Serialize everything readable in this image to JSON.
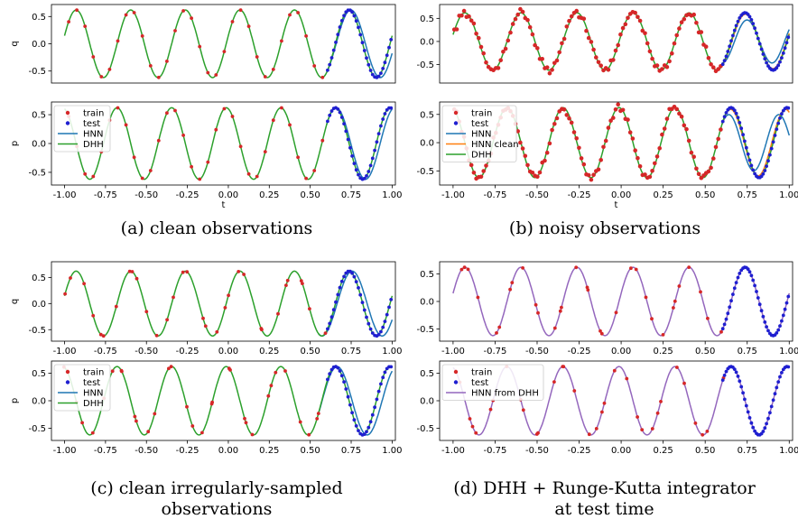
{
  "figure": {
    "captions": [
      "(a) clean observations",
      "(b) noisy observations",
      "(c) clean irregularly-sampled observations",
      "(d) DHH + Runge-Kutta integrator at test time"
    ],
    "caption_lines": [
      [
        "(a) clean observations"
      ],
      [
        "(b) noisy observations"
      ],
      [
        "(c) clean irregularly-sampled",
        "observations"
      ],
      [
        "(d) DHH + Runge-Kutta integrator",
        "at test time"
      ]
    ]
  },
  "colors": {
    "train": "#d62728",
    "test": "#1f1fd0",
    "hnn": "#1f77b4",
    "hnn_clean": "#ff7f0e",
    "dhh": "#2ca02c",
    "hnn_from_dhh": "#9467bd",
    "test_regular": "#1f3f7a"
  },
  "chart_data": [
    {
      "panel": "a-top",
      "type": "line",
      "ylabel": "q",
      "xlabel": "",
      "xlim": [
        -1.08,
        1.02
      ],
      "ylim": [
        -0.72,
        0.72
      ],
      "yticks": [
        "-0.5",
        "0.0",
        "0.5"
      ],
      "ytick_values": [
        -0.5,
        0.0,
        0.5
      ],
      "xticks": [],
      "xtick_values": [],
      "signal": {
        "amplitude": 0.62,
        "omega": 18.85,
        "phase": 0.24
      },
      "series": [
        {
          "kind": "points",
          "role": "train",
          "range": [
            -1.0,
            0.6
          ],
          "n": 32,
          "noise": 0
        },
        {
          "kind": "points",
          "role": "test",
          "range": [
            0.6,
            1.0
          ],
          "n": 32,
          "noise": 0
        },
        {
          "kind": "line",
          "role": "hnn",
          "range": [
            0.6,
            1.0
          ],
          "ampScale": 1.0,
          "omegaScale": 0.93
        },
        {
          "kind": "line",
          "role": "dhh",
          "range": [
            -1.0,
            1.0
          ],
          "ampScale": 1.0,
          "omegaScale": 1.0
        }
      ],
      "legend": []
    },
    {
      "panel": "a-bottom",
      "type": "line",
      "ylabel": "p",
      "xlabel": "t",
      "xlim": [
        -1.08,
        1.02
      ],
      "ylim": [
        -0.72,
        0.72
      ],
      "yticks": [
        "-0.5",
        "0.0",
        "0.5"
      ],
      "ytick_values": [
        -0.5,
        0.0,
        0.5
      ],
      "xticks": [
        "-1.00",
        "-0.75",
        "-0.50",
        "-0.25",
        "0.00",
        "0.25",
        "0.50",
        "0.75",
        "1.00"
      ],
      "xtick_values": [
        -1.0,
        -0.75,
        -0.5,
        -0.25,
        0.0,
        0.25,
        0.5,
        0.75,
        1.0
      ],
      "signal": {
        "amplitude": 0.62,
        "omega": 18.85,
        "phase": 1.81
      },
      "series": [
        {
          "kind": "points",
          "role": "train",
          "range": [
            -1.0,
            0.6
          ],
          "n": 32,
          "noise": 0
        },
        {
          "kind": "points",
          "role": "test",
          "range": [
            0.6,
            1.0
          ],
          "n": 32,
          "noise": 0
        },
        {
          "kind": "line",
          "role": "hnn",
          "range": [
            0.6,
            1.0
          ],
          "ampScale": 1.0,
          "omegaScale": 0.93
        },
        {
          "kind": "line",
          "role": "dhh",
          "range": [
            -1.0,
            1.0
          ],
          "ampScale": 1.0,
          "omegaScale": 1.0
        }
      ],
      "legend": [
        "train",
        "test",
        "HNN",
        "DHH"
      ]
    },
    {
      "panel": "b-top",
      "type": "line",
      "ylabel": "",
      "xlabel": "",
      "xlim": [
        -1.08,
        1.02
      ],
      "ylim": [
        -0.9,
        0.8
      ],
      "yticks": [
        "-0.5",
        "0.0",
        "0.5"
      ],
      "ytick_values": [
        -0.5,
        0.0,
        0.5
      ],
      "xticks": [],
      "xtick_values": [],
      "signal": {
        "amplitude": 0.62,
        "omega": 18.85,
        "phase": 0.24
      },
      "series": [
        {
          "kind": "points",
          "role": "train",
          "range": [
            -1.0,
            0.6
          ],
          "n": 110,
          "noise": 0.09
        },
        {
          "kind": "points",
          "role": "test",
          "range": [
            0.6,
            1.0
          ],
          "n": 40,
          "noise": 0
        },
        {
          "kind": "line",
          "role": "hnn",
          "range": [
            0.6,
            1.0
          ],
          "ampScale": 0.75,
          "omegaScale": 1.12
        },
        {
          "kind": "line",
          "role": "hnn_clean",
          "range": [
            0.6,
            1.0
          ],
          "ampScale": 0.95,
          "omegaScale": 1.02
        },
        {
          "kind": "line",
          "role": "dhh",
          "range": [
            -1.0,
            1.0
          ],
          "ampScale": 1.0,
          "omegaScale": 1.0
        }
      ],
      "legend": []
    },
    {
      "panel": "b-bottom",
      "type": "line",
      "ylabel": "",
      "xlabel": "t",
      "xlim": [
        -1.08,
        1.02
      ],
      "ylim": [
        -0.75,
        0.72
      ],
      "yticks": [
        "-0.5",
        "0.0",
        "0.5"
      ],
      "ytick_values": [
        -0.5,
        0.0,
        0.5
      ],
      "xticks": [
        "-1.00",
        "-0.75",
        "-0.50",
        "-0.25",
        "0.00",
        "0.25",
        "0.50",
        "0.75",
        "1.00"
      ],
      "xtick_values": [
        -1.0,
        -0.75,
        -0.5,
        -0.25,
        0.0,
        0.25,
        0.5,
        0.75,
        1.0
      ],
      "signal": {
        "amplitude": 0.62,
        "omega": 18.85,
        "phase": 1.81
      },
      "series": [
        {
          "kind": "points",
          "role": "train",
          "range": [
            -1.0,
            0.6
          ],
          "n": 110,
          "noise": 0.08
        },
        {
          "kind": "points",
          "role": "test",
          "range": [
            0.6,
            1.0
          ],
          "n": 40,
          "noise": 0
        },
        {
          "kind": "line",
          "role": "hnn",
          "range": [
            0.6,
            1.0
          ],
          "ampScale": 0.8,
          "omegaScale": 1.12
        },
        {
          "kind": "line",
          "role": "hnn_clean",
          "range": [
            0.6,
            1.0
          ],
          "ampScale": 0.95,
          "omegaScale": 1.02
        },
        {
          "kind": "line",
          "role": "dhh",
          "range": [
            -1.0,
            1.0
          ],
          "ampScale": 1.0,
          "omegaScale": 1.0
        }
      ],
      "legend": [
        "train",
        "test",
        "HNN",
        "HNN clean",
        "DHH"
      ]
    },
    {
      "panel": "c-top",
      "type": "line",
      "ylabel": "q",
      "xlabel": "",
      "xlim": [
        -1.08,
        1.02
      ],
      "ylim": [
        -0.72,
        0.8
      ],
      "yticks": [
        "-0.5",
        "0.0",
        "0.5"
      ],
      "ytick_values": [
        -0.5,
        0.0,
        0.5
      ],
      "xticks": [
        "-1.00",
        "-0.75",
        "-0.50",
        "-0.25",
        "0.00",
        "0.25",
        "0.50",
        "0.75",
        "1.00"
      ],
      "xtick_values": [
        -1.0,
        -0.75,
        -0.5,
        -0.25,
        0.0,
        0.25,
        0.5,
        0.75,
        1.0
      ],
      "signal": {
        "amplitude": 0.62,
        "omega": 18.85,
        "phase": 0.24
      },
      "series": [
        {
          "kind": "points",
          "role": "train",
          "range": [
            -1.0,
            0.6
          ],
          "n": 32,
          "noise": 0,
          "irregular": true
        },
        {
          "kind": "points",
          "role": "test",
          "range": [
            0.6,
            1.0
          ],
          "n": 32,
          "noise": 0
        },
        {
          "kind": "line",
          "role": "hnn",
          "range": [
            0.55,
            1.0
          ],
          "ampScale": 1.0,
          "omegaScale": 0.91
        },
        {
          "kind": "line",
          "role": "dhh",
          "range": [
            -1.0,
            1.0
          ],
          "ampScale": 1.0,
          "omegaScale": 1.0
        }
      ],
      "legend": []
    },
    {
      "panel": "c-bottom",
      "type": "line",
      "ylabel": "p",
      "xlabel": "",
      "xlim": [
        -1.08,
        1.02
      ],
      "ylim": [
        -0.72,
        0.72
      ],
      "yticks": [
        "-0.5",
        "0.0",
        "0.5"
      ],
      "ytick_values": [
        -0.5,
        0.0,
        0.5
      ],
      "xticks": [
        "-1.00",
        "-0.75",
        "-0.50",
        "-0.25",
        "0.00",
        "0.25",
        "0.50",
        "0.75",
        "1.00"
      ],
      "xtick_values": [
        -1.0,
        -0.75,
        -0.5,
        -0.25,
        0.0,
        0.25,
        0.5,
        0.75,
        1.0
      ],
      "signal": {
        "amplitude": 0.62,
        "omega": 18.85,
        "phase": 1.81
      },
      "series": [
        {
          "kind": "points",
          "role": "train",
          "range": [
            -1.0,
            0.6
          ],
          "n": 32,
          "noise": 0,
          "irregular": true
        },
        {
          "kind": "points",
          "role": "test",
          "range": [
            0.6,
            1.0
          ],
          "n": 32,
          "noise": 0
        },
        {
          "kind": "line",
          "role": "hnn",
          "range": [
            0.55,
            1.0
          ],
          "ampScale": 1.0,
          "omegaScale": 0.91
        },
        {
          "kind": "line",
          "role": "dhh",
          "range": [
            -1.0,
            1.0
          ],
          "ampScale": 1.0,
          "omegaScale": 1.0
        }
      ],
      "legend": [
        "train",
        "test",
        "HNN",
        "DHH"
      ]
    },
    {
      "panel": "d-top",
      "type": "line",
      "ylabel": "",
      "xlabel": "",
      "xlim": [
        -1.08,
        1.02
      ],
      "ylim": [
        -0.72,
        0.72
      ],
      "yticks": [
        "-0.5",
        "0.0",
        "0.5"
      ],
      "ytick_values": [
        -0.5,
        0.0,
        0.5
      ],
      "xticks": [
        "-1.00",
        "-0.75",
        "-0.50",
        "-0.25",
        "0.00",
        "0.25",
        "0.50",
        "0.75",
        "1.00"
      ],
      "xtick_values": [
        -1.0,
        -0.75,
        -0.5,
        -0.25,
        0.0,
        0.25,
        0.5,
        0.75,
        1.0
      ],
      "signal": {
        "amplitude": 0.62,
        "omega": 18.85,
        "phase": 0.24
      },
      "series": [
        {
          "kind": "points",
          "role": "train",
          "range": [
            -1.0,
            0.6
          ],
          "n": 32,
          "noise": 0,
          "irregular": true
        },
        {
          "kind": "points",
          "role": "test",
          "range": [
            0.6,
            1.0
          ],
          "n": 40,
          "noise": 0
        },
        {
          "kind": "line",
          "role": "hnn_from_dhh",
          "range": [
            -1.0,
            1.0
          ],
          "ampScale": 1.0,
          "omegaScale": 1.0
        }
      ],
      "legend": []
    },
    {
      "panel": "d-bottom",
      "type": "line",
      "ylabel": "",
      "xlabel": "",
      "xlim": [
        -1.08,
        1.02
      ],
      "ylim": [
        -0.72,
        0.72
      ],
      "yticks": [
        "-0.5",
        "0.0",
        "0.5"
      ],
      "ytick_values": [
        -0.5,
        0.0,
        0.5
      ],
      "xticks": [
        "-1.00",
        "-0.75",
        "-0.50",
        "-0.25",
        "0.00",
        "0.25",
        "0.50",
        "0.75",
        "1.00"
      ],
      "xtick_values": [
        -1.0,
        -0.75,
        -0.5,
        -0.25,
        0.0,
        0.25,
        0.5,
        0.75,
        1.0
      ],
      "signal": {
        "amplitude": 0.62,
        "omega": 18.85,
        "phase": 1.81
      },
      "series": [
        {
          "kind": "points",
          "role": "train",
          "range": [
            -1.0,
            0.6
          ],
          "n": 32,
          "noise": 0,
          "irregular": true
        },
        {
          "kind": "points",
          "role": "test",
          "range": [
            0.6,
            1.0
          ],
          "n": 40,
          "noise": 0
        },
        {
          "kind": "line",
          "role": "hnn_from_dhh",
          "range": [
            -1.0,
            1.0
          ],
          "ampScale": 1.0,
          "omegaScale": 1.0
        }
      ],
      "legend": [
        "train",
        "test",
        "HNN from DHH"
      ]
    }
  ]
}
